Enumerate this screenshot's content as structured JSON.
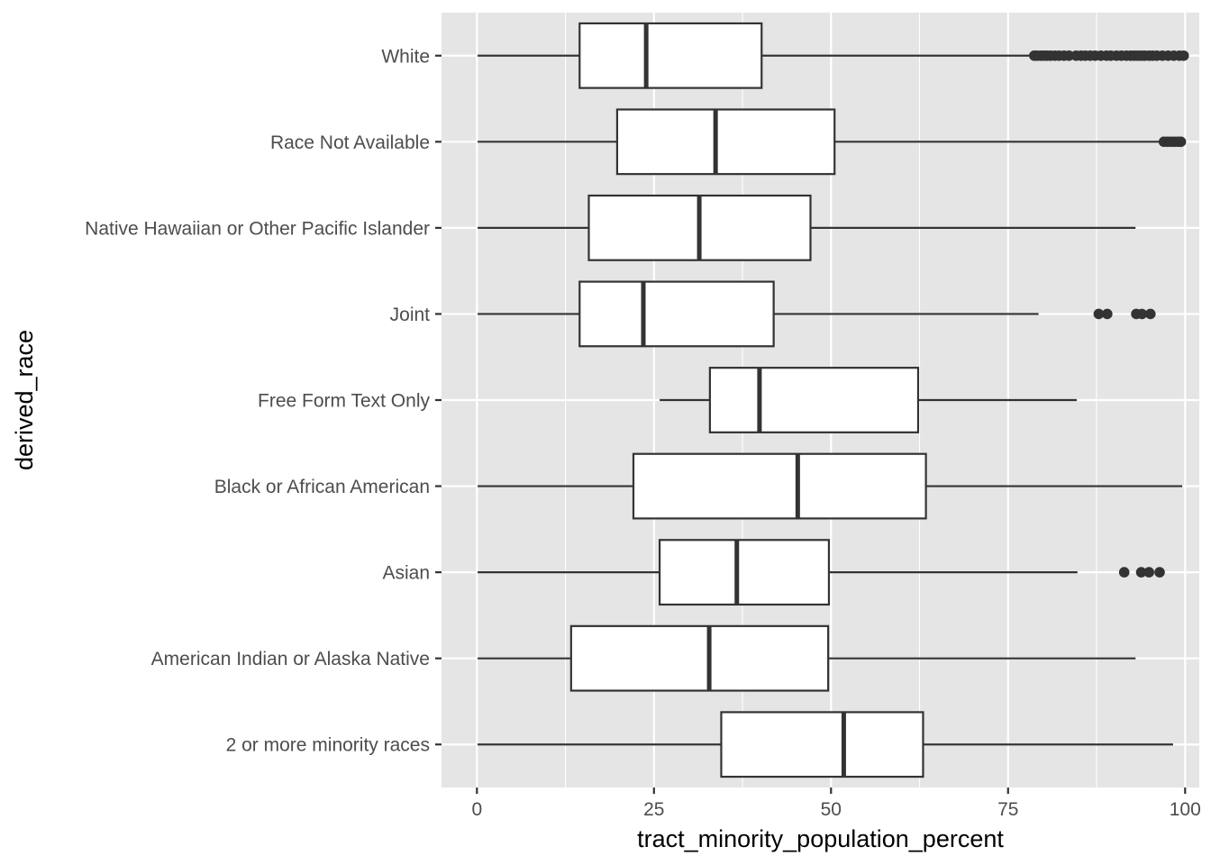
{
  "chart_data": {
    "type": "boxplot",
    "orientation": "horizontal",
    "xlabel": "tract_minority_population_percent",
    "ylabel": "derived_race",
    "xlim": [
      -5,
      102
    ],
    "x_ticks": [
      0,
      25,
      50,
      75,
      100
    ],
    "x_tick_labels": [
      "0",
      "25",
      "50",
      "75",
      "100"
    ],
    "grid": true,
    "panel_background": "#e5e5e5",
    "box_fill": "#ffffff",
    "line_color": "#333333",
    "outlier_color": "#333333",
    "categories": [
      "2 or more minority races",
      "American Indian or Alaska Native",
      "Asian",
      "Black or African American",
      "Free Form Text Only",
      "Joint",
      "Native Hawaiian or Other Pacific Islander",
      "Race Not Available",
      "White"
    ],
    "boxes": [
      {
        "category": "2 or more minority races",
        "whisker_low": 0.1,
        "q1": 34.5,
        "median": 51.8,
        "q3": 63.0,
        "whisker_high": 98.3,
        "outliers": []
      },
      {
        "category": "American Indian or Alaska Native",
        "whisker_low": 0.1,
        "q1": 13.3,
        "median": 32.8,
        "q3": 49.6,
        "whisker_high": 93.0,
        "outliers": []
      },
      {
        "category": "Asian",
        "whisker_low": 0.1,
        "q1": 25.8,
        "median": 36.7,
        "q3": 49.7,
        "whisker_high": 84.8,
        "outliers": [
          91.4,
          93.8,
          94.9,
          96.4
        ]
      },
      {
        "category": "Black or African American",
        "whisker_low": 0.1,
        "q1": 22.1,
        "median": 45.3,
        "q3": 63.4,
        "whisker_high": 99.6,
        "outliers": []
      },
      {
        "category": "Free Form Text Only",
        "whisker_low": 25.8,
        "q1": 32.9,
        "median": 39.9,
        "q3": 62.3,
        "whisker_high": 84.7,
        "outliers": []
      },
      {
        "category": "Joint",
        "whisker_low": 0.1,
        "q1": 14.5,
        "median": 23.5,
        "q3": 41.9,
        "whisker_high": 79.3,
        "outliers": [
          87.8,
          89.0,
          93.1,
          93.9,
          95.1
        ]
      },
      {
        "category": "Native Hawaiian or Other Pacific Islander",
        "whisker_low": 0.1,
        "q1": 15.8,
        "median": 31.4,
        "q3": 47.1,
        "whisker_high": 93.0,
        "outliers": []
      },
      {
        "category": "Race Not Available",
        "whisker_low": 0.1,
        "q1": 19.8,
        "median": 33.7,
        "q3": 50.5,
        "whisker_high": 96.7,
        "outliers": [
          97.0,
          97.5,
          98.0,
          98.5,
          99.0,
          99.4
        ]
      },
      {
        "category": "White",
        "whisker_low": 0.1,
        "q1": 14.5,
        "median": 23.9,
        "q3": 40.2,
        "whisker_high": 78.5,
        "outliers": [
          78.7,
          79.1,
          79.6,
          80.0,
          80.5,
          81.0,
          81.6,
          82.2,
          82.9,
          83.6,
          84.6,
          85.3,
          85.9,
          86.6,
          87.3,
          88.1,
          88.9,
          89.5,
          90.3,
          91.0,
          91.7,
          92.3,
          92.8,
          93.3,
          93.8,
          94.3,
          94.9,
          95.4,
          96.0,
          96.8,
          97.6,
          98.4,
          99.2,
          99.8
        ]
      }
    ]
  }
}
